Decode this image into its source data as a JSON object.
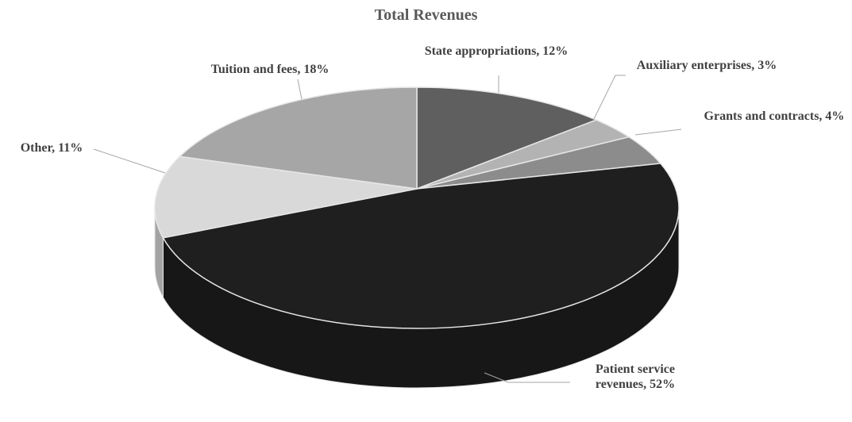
{
  "chart_data": {
    "type": "pie3d",
    "title": "Total Revenues",
    "values": [
      12,
      3,
      4,
      52,
      11,
      18
    ],
    "value_labels": [
      "State appropriations, 12%",
      "Auxiliary enterprises, 3%",
      "Grants and contracts, 4%",
      "Patient service revenues, 52%",
      "Other, 11%",
      "Tuition and fees, 18%"
    ],
    "colors": [
      "#5f5f5f",
      "#b3b3b3",
      "#8c8c8c",
      "#1f1f1f",
      "#d9d9d9",
      "#a6a6a6"
    ]
  }
}
